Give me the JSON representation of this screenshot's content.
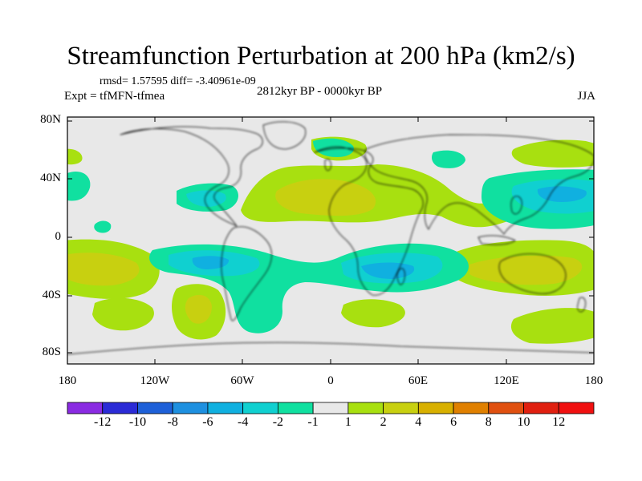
{
  "title": "Streamfunction Perturbation at 200 hPa (km2/s)",
  "stats": "rmsd= 1.57595 diff= -3.40961e-09",
  "experiment": "Expt = tfMFN-tfmea",
  "period": "2812kyr BP - 0000kyr BP",
  "season": "JJA",
  "lat_labels": [
    "80N",
    "40N",
    "0",
    "40S",
    "80S"
  ],
  "lon_labels": [
    "180",
    "120W",
    "60W",
    "0",
    "60E",
    "120E",
    "180"
  ],
  "colorbar": {
    "labels": [
      "-12",
      "-10",
      "-8",
      "-6",
      "-4",
      "-2",
      "-1",
      "1",
      "2",
      "4",
      "6",
      "8",
      "10",
      "12"
    ],
    "colors": [
      "#8a2be2",
      "#2b2bd6",
      "#1e60d8",
      "#1e90e0",
      "#10b0e0",
      "#10d0d0",
      "#10e0a0",
      "#e8e8e8",
      "#a8e010",
      "#c8d010",
      "#d8b000",
      "#e08000",
      "#e05010",
      "#e02010",
      "#f01010"
    ]
  },
  "palette": {
    "neutral": "#e8e8e8",
    "lightgreen": "#a8e010",
    "yellow": "#c8d010",
    "mint": "#10e0a0",
    "cyan": "#10d0d0",
    "blue": "#10b0e0"
  }
}
